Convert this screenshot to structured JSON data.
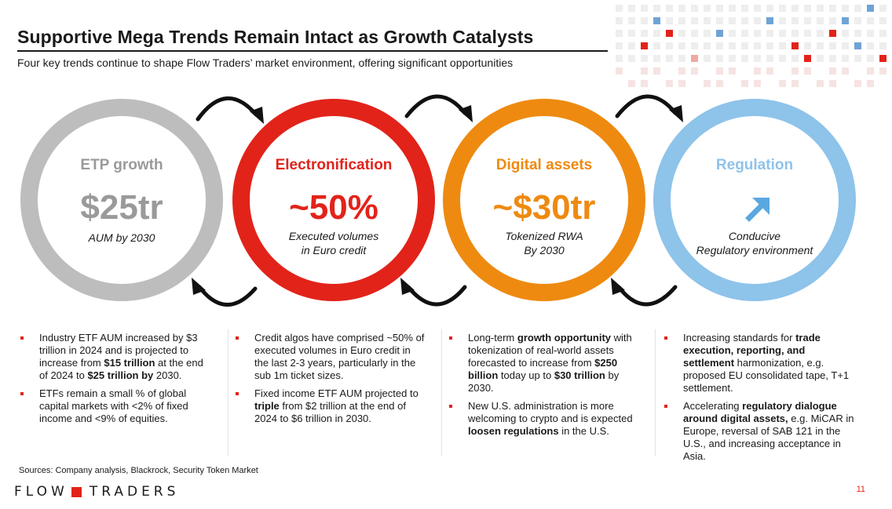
{
  "header": {
    "title": "Supportive Mega Trends Remain Intact as Growth Catalysts",
    "subtitle": "Four key trends continue to shape Flow Traders’ market environment, offering significant opportunities"
  },
  "colors": {
    "etp": "#bdbdbd",
    "electronification": "#e2231a",
    "digital": "#ee8a10",
    "regulation": "#8ec3ea",
    "bullet": "#e2231a"
  },
  "trends": [
    {
      "label": "ETP growth",
      "value": "$25tr",
      "desc_line1": "AUM by 2030",
      "desc_line2": ""
    },
    {
      "label": "Electronification",
      "value": "~50%",
      "desc_line1": "Executed volumes",
      "desc_line2": "in Euro credit"
    },
    {
      "label": "Digital assets",
      "value": "~$30tr",
      "desc_line1": "Tokenized RWA",
      "desc_line2": "By 2030"
    },
    {
      "label": "Regulation",
      "value": "",
      "icon": "arrow-up-right-icon",
      "desc_line1": "Conducive",
      "desc_line2": "Regulatory environment"
    }
  ],
  "columns": [
    {
      "bullets": [
        [
          {
            "t": "Industry ETF AUM increased by $3 trillion in 2024 and is projected to increase from "
          },
          {
            "t": "$15 trillion",
            "b": true
          },
          {
            "t": " at the end of 2024 to "
          },
          {
            "t": "$25 trillion by",
            "b": true
          },
          {
            "t": " 2030."
          }
        ],
        [
          {
            "t": "ETFs remain a small % of global capital markets with <2% of fixed income and <9% of equities."
          }
        ]
      ]
    },
    {
      "bullets": [
        [
          {
            "t": "Credit algos have comprised ~50% of executed volumes in Euro credit in the last 2-3 years, particularly in the sub 1m ticket sizes."
          }
        ],
        [
          {
            "t": "Fixed income ETF AUM projected to "
          },
          {
            "t": "triple",
            "b": true
          },
          {
            "t": " from $2 trillion at the end of 2024 to $6 trillion in 2030."
          }
        ]
      ]
    },
    {
      "bullets": [
        [
          {
            "t": "Long-term "
          },
          {
            "t": "growth opportunity",
            "b": true
          },
          {
            "t": " with tokenization of real-world assets forecasted to increase from "
          },
          {
            "t": "$250 billion",
            "b": true
          },
          {
            "t": " today up to "
          },
          {
            "t": "$30 trillion",
            "b": true
          },
          {
            "t": " by 2030."
          }
        ],
        [
          {
            "t": "New U.S. administration is more welcoming to crypto and is expected "
          },
          {
            "t": "loosen regulations",
            "b": true
          },
          {
            "t": " in the U.S."
          }
        ]
      ]
    },
    {
      "bullets": [
        [
          {
            "t": "Increasing standards for "
          },
          {
            "t": "trade execution, reporting, and settlement",
            "b": true
          },
          {
            "t": " harmonization, e.g. proposed EU consolidated tape, T+1 settlement."
          }
        ],
        [
          {
            "t": "Accelerating "
          },
          {
            "t": "regulatory dialogue around digital assets,",
            "b": true
          },
          {
            "t": " e.g. MiCAR in Europe, reversal of SAB 121 in the U.S., and increasing acceptance in Asia."
          }
        ]
      ]
    }
  ],
  "footer": {
    "sources": "Sources: Company analysis, Blackrock, Security Token Market",
    "logo_left": "FLOW",
    "logo_right": "TRADERS",
    "page_number": "11"
  }
}
